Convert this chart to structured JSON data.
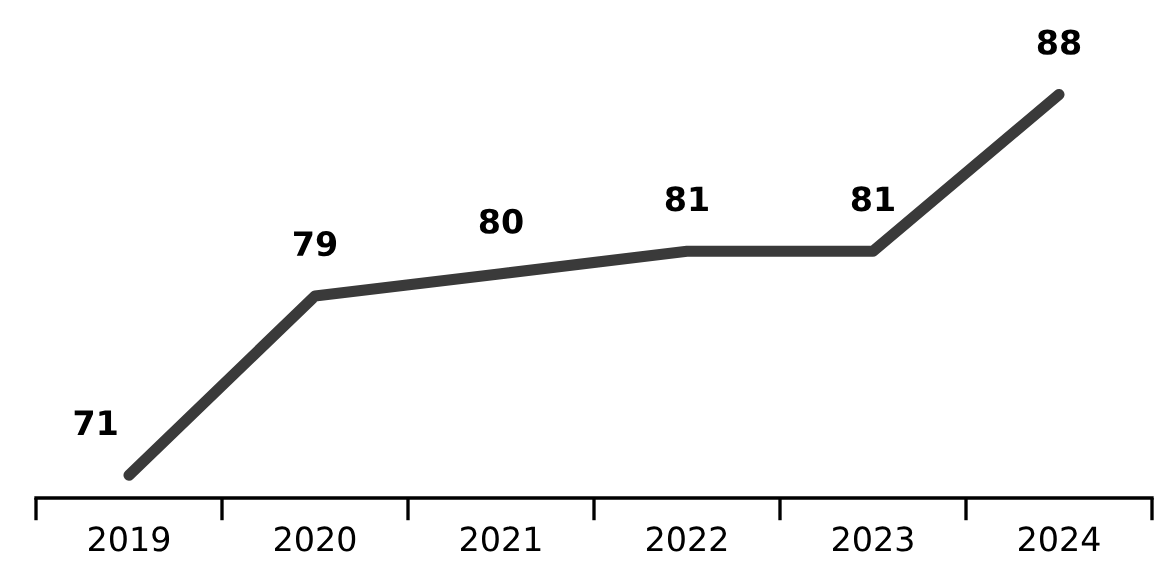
{
  "chart_data": {
    "type": "line",
    "categories": [
      "2019",
      "2020",
      "2021",
      "2022",
      "2023",
      "2024"
    ],
    "series": [
      {
        "color": "#3a3a3a",
        "values": [
          71,
          79,
          80,
          81,
          81,
          88
        ]
      }
    ],
    "data_labels": true,
    "grid": false,
    "marker": "none",
    "line_style": "solid",
    "tick_labels": "x"
  }
}
